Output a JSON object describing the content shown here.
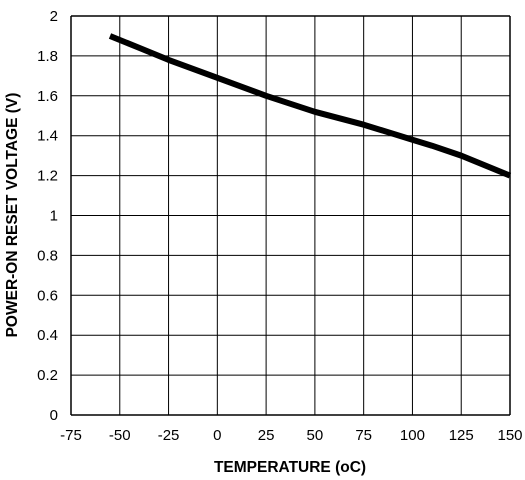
{
  "chart_data": {
    "type": "line",
    "title": "",
    "xlabel": "TEMPERATURE (oC)",
    "ylabel": "POWER-ON RESET VOLTAGE (V)",
    "xlim": [
      -75,
      150
    ],
    "ylim": [
      0,
      2
    ],
    "xticks": [
      -75,
      -50,
      -25,
      0,
      25,
      50,
      75,
      100,
      125,
      150
    ],
    "xtick_labels": [
      "-75",
      "-50",
      "-25",
      "0",
      "25",
      "50",
      "75",
      "100",
      "125",
      "150"
    ],
    "yticks": [
      0,
      0.2,
      0.4,
      0.6,
      0.8,
      1,
      1.2,
      1.4,
      1.6,
      1.8,
      2
    ],
    "ytick_labels": [
      "0",
      "0.2",
      "0.4",
      "0.6",
      "0.8",
      "1",
      "1.2",
      "1.4",
      "1.6",
      "1.8",
      "2"
    ],
    "grid": true,
    "legend": "none",
    "line_color": "#000000",
    "series": [
      {
        "x": [
          -55,
          -40,
          -25,
          0,
          25,
          50,
          75,
          100,
          110,
          125,
          150
        ],
        "y": [
          1.9,
          1.84,
          1.78,
          1.69,
          1.6,
          1.52,
          1.455,
          1.38,
          1.35,
          1.3,
          1.2
        ]
      }
    ]
  }
}
